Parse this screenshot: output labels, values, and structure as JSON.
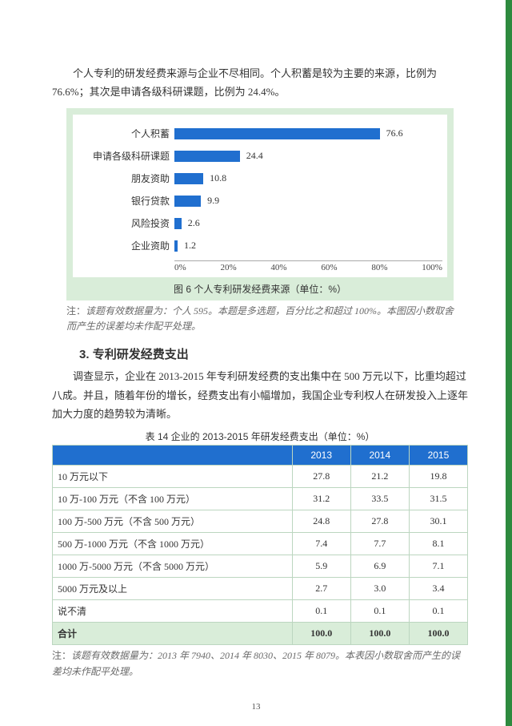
{
  "intro": "个人专利的研发经费来源与企业不尽相同。个人积蓄是较为主要的来源，比例为 76.6%；其次是申请各级科研课题，比例为 24.4%。",
  "chart": {
    "type": "bar-horizontal",
    "background": "#d9edd9",
    "plot_background": "#ffffff",
    "bar_color": "#206fcf",
    "label_fontsize": 12,
    "value_fontsize": 12,
    "xlim": [
      0,
      100
    ],
    "xtick_step": 20,
    "xticks": [
      "0%",
      "20%",
      "40%",
      "60%",
      "80%",
      "100%"
    ],
    "categories": [
      "个人积蓄",
      "申请各级科研课题",
      "朋友资助",
      "银行贷款",
      "风险投资",
      "企业资助"
    ],
    "values": [
      76.6,
      24.4,
      10.8,
      9.9,
      2.6,
      1.2
    ],
    "caption": "图 6  个人专利研发经费来源（单位：%）"
  },
  "chart_note_label": "注：",
  "chart_note": "该题有效数据量为：个人 595。本题是多选题，百分比之和超过 100%。本图因小数取舍而产生的误差均未作配平处理。",
  "section_num": "3.",
  "section_title": "专利研发经费支出",
  "body2": "调查显示，企业在 2013-2015 年专利研发经费的支出集中在 500 万元以下，比重均超过八成。并且，随着年份的增长，经费支出有小幅增加，我国企业专利权人在研发投入上逐年加大力度的趋势较为清晰。",
  "table": {
    "caption": "表 14  企业的 2013-2015 年研发经费支出（单位：%）",
    "header_bg": "#206fcf",
    "header_color": "#ffffff",
    "row_border": "#bcd6c0",
    "total_bg": "#d9edd9",
    "columns": [
      "",
      "2013",
      "2014",
      "2015"
    ],
    "rows": [
      [
        "10 万元以下",
        "27.8",
        "21.2",
        "19.8"
      ],
      [
        "10 万-100 万元（不含 100 万元）",
        "31.2",
        "33.5",
        "31.5"
      ],
      [
        "100 万-500 万元（不含 500 万元）",
        "24.8",
        "27.8",
        "30.1"
      ],
      [
        "500 万-1000 万元（不含 1000 万元）",
        "7.4",
        "7.7",
        "8.1"
      ],
      [
        "1000 万-5000 万元（不含 5000 万元）",
        "5.9",
        "6.9",
        "7.1"
      ],
      [
        "5000 万元及以上",
        "2.7",
        "3.0",
        "3.4"
      ],
      [
        "说不清",
        "0.1",
        "0.1",
        "0.1"
      ]
    ],
    "total_row": [
      "合计",
      "100.0",
      "100.0",
      "100.0"
    ]
  },
  "table_note_label": "注：",
  "table_note": "该题有效数据量为：2013 年 7940、2014 年 8030、2015 年 8079。本表因小数取舍而产生的误差均未作配平处理。",
  "page_number": "13"
}
